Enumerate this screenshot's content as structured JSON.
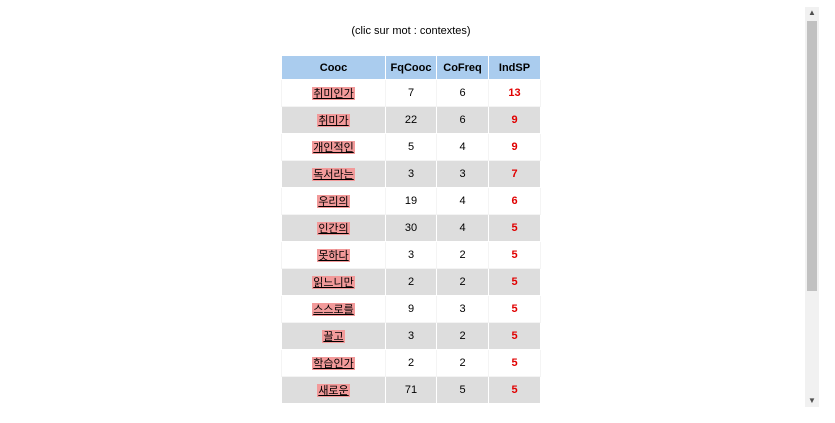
{
  "hint": "(clic sur mot : contextes)",
  "table": {
    "headers": [
      "Cooc",
      "FqCooc",
      "CoFreq",
      "IndSP"
    ],
    "rows": [
      {
        "word": "취미인가",
        "fq": "7",
        "cofreq": "6",
        "ind": "13"
      },
      {
        "word": "취미가",
        "fq": "22",
        "cofreq": "6",
        "ind": "9"
      },
      {
        "word": "개인적인",
        "fq": "5",
        "cofreq": "4",
        "ind": "9"
      },
      {
        "word": "독서라는",
        "fq": "3",
        "cofreq": "3",
        "ind": "7"
      },
      {
        "word": "우리의",
        "fq": "19",
        "cofreq": "4",
        "ind": "6"
      },
      {
        "word": "인간의",
        "fq": "30",
        "cofreq": "4",
        "ind": "5"
      },
      {
        "word": "못하다",
        "fq": "3",
        "cofreq": "2",
        "ind": "5"
      },
      {
        "word": "읽느니만",
        "fq": "2",
        "cofreq": "2",
        "ind": "5"
      },
      {
        "word": "스스로를",
        "fq": "9",
        "cofreq": "3",
        "ind": "5"
      },
      {
        "word": "끌고",
        "fq": "3",
        "cofreq": "2",
        "ind": "5"
      },
      {
        "word": "학습인가",
        "fq": "2",
        "cofreq": "2",
        "ind": "5"
      },
      {
        "word": "새로운",
        "fq": "71",
        "cofreq": "5",
        "ind": "5"
      }
    ]
  },
  "colors": {
    "header_bg": "#aaccee",
    "word_highlight": "#f29a9a",
    "ind_color": "#e00000",
    "row_alt": "#dddddd"
  },
  "scrollbar": {
    "up_icon": "arrow-up-icon",
    "down_icon": "arrow-down-icon"
  }
}
